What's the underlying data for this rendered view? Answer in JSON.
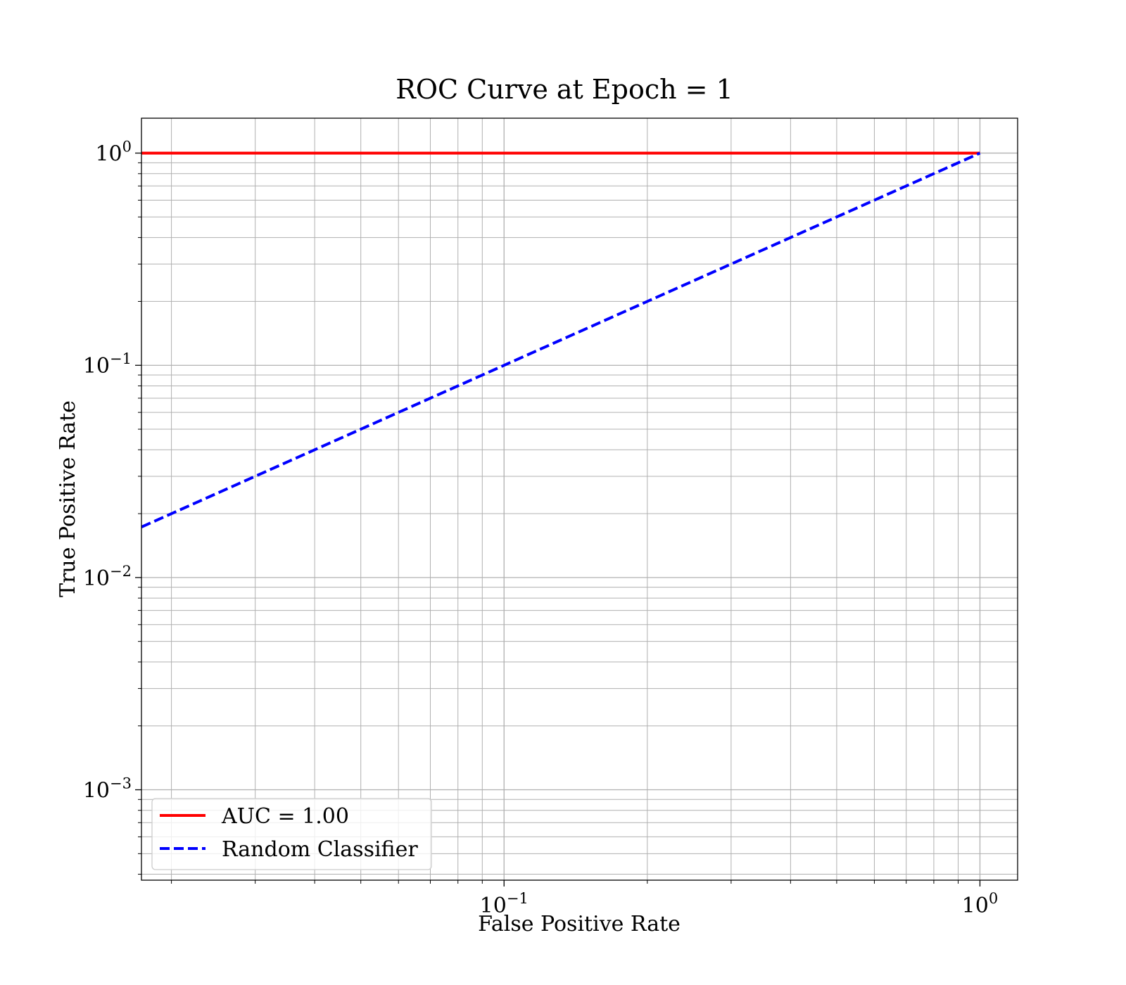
{
  "chart_data": {
    "type": "line",
    "title": "ROC Curve at Epoch = 1",
    "xlabel": "False Positive Rate",
    "ylabel": "True Positive Rate",
    "xscale": "log",
    "yscale": "log",
    "xlim": [
      0.0173,
      1.2
    ],
    "ylim": [
      0.000375,
      1.46
    ],
    "grid": true,
    "grid_minor": true,
    "legend_position": "lower-left",
    "x_ticks": [
      {
        "value": 0.1,
        "base": "10",
        "exp": "−1"
      },
      {
        "value": 1,
        "base": "10",
        "exp": "0"
      }
    ],
    "y_ticks": [
      {
        "value": 1,
        "base": "10",
        "exp": "0"
      },
      {
        "value": 0.1,
        "base": "10",
        "exp": "−1"
      },
      {
        "value": 0.01,
        "base": "10",
        "exp": "−2"
      },
      {
        "value": 0.001,
        "base": "10",
        "exp": "−3"
      }
    ],
    "series": [
      {
        "name": "AUC = 1.00",
        "color": "#ff0000",
        "style": "solid",
        "x": [
          0.0173,
          1.0
        ],
        "y": [
          1.0,
          1.0
        ]
      },
      {
        "name": "Random Classifier",
        "color": "#0000ff",
        "style": "dashed",
        "x": [
          0.0173,
          1.0
        ],
        "y": [
          0.0173,
          1.0
        ]
      }
    ]
  }
}
